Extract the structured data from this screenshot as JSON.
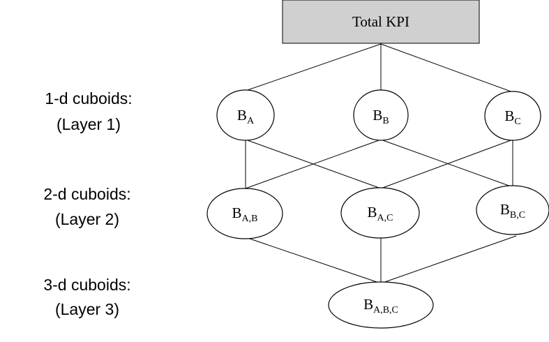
{
  "layers": [
    {
      "label": "1-d cuboids:",
      "sub": "(Layer 1)"
    },
    {
      "label": "2-d cuboids:",
      "sub": "(Layer 2)"
    },
    {
      "label": "3-d cuboids:",
      "sub": "(Layer 3)"
    }
  ],
  "root": {
    "label": "Total KPI"
  },
  "nodes": {
    "b_a": {
      "base": "B",
      "sub": "A"
    },
    "b_b": {
      "base": "B",
      "sub": "B"
    },
    "b_c": {
      "base": "B",
      "sub": "C"
    },
    "b_ab": {
      "base": "B",
      "sub": "A,B"
    },
    "b_ac": {
      "base": "B",
      "sub": "A,C"
    },
    "b_bc": {
      "base": "B",
      "sub": "B,C"
    },
    "b_abc": {
      "base": "B",
      "sub": "A,B,C"
    }
  }
}
